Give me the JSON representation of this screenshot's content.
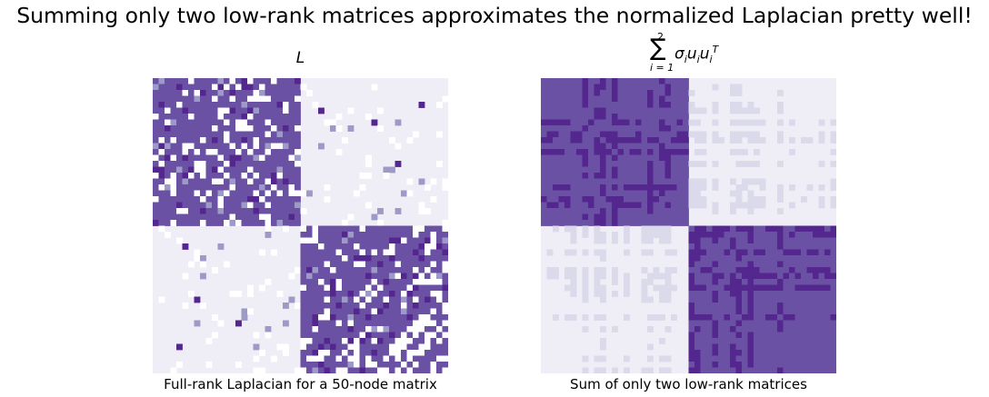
{
  "figure": {
    "suptitle": "Summing only two low-rank matrices approximates the normalized Laplacian pretty well!"
  },
  "chart_data": [
    {
      "type": "heatmap",
      "title": "L",
      "xlabel": "Full-rank Laplacian for a 50-node matrix",
      "ylabel": "",
      "shape": [
        50,
        50
      ],
      "block_split": 25,
      "colormap": "Purples",
      "grid": false,
      "axes_visible": false,
      "colors": {
        "background": "#efedf5",
        "edge": "#6a51a3",
        "strong": "#54278f",
        "light": "#9e9ac8",
        "off": "#ffffff"
      },
      "sample_rows": {
        "description_rows": [
          0,
          1,
          2
        ],
        "row_0": [
          1,
          0,
          1,
          1,
          0,
          1,
          1,
          1,
          1,
          1,
          1,
          1,
          1,
          0,
          1,
          1,
          1,
          0,
          1,
          1,
          0,
          1,
          1,
          1,
          1,
          0,
          0,
          0,
          0,
          0,
          0,
          0,
          0,
          0,
          0,
          0,
          0,
          0,
          0,
          0,
          0,
          0,
          0,
          0,
          0,
          0,
          0,
          0,
          0,
          0
        ]
      }
    },
    {
      "type": "heatmap",
      "title_formula": {
        "sum_lower": "i = 1",
        "sum_upper": "2",
        "body": "σ",
        "body_sub": "i",
        "u1": "u",
        "u1_sub": "i",
        "u2": "u",
        "u2_sub": "i",
        "u2_sup": "T"
      },
      "xlabel": "Sum of only two low-rank matrices",
      "ylabel": "",
      "shape": [
        50,
        50
      ],
      "block_split": 25,
      "colormap": "Purples",
      "grid": false,
      "axes_visible": false,
      "colors": {
        "background": "#efedf5",
        "block": "#6a51a3",
        "strong": "#54278f",
        "faint": "#dadaeb"
      }
    }
  ]
}
